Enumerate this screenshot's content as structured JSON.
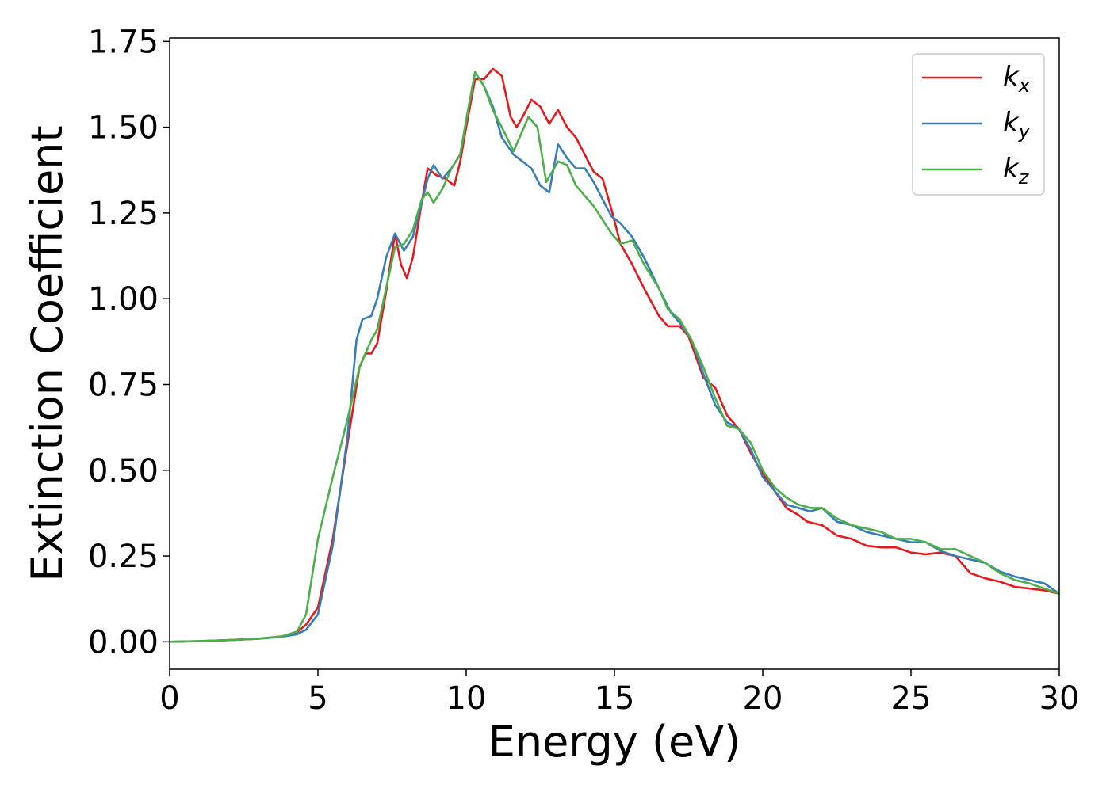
{
  "chart_data": {
    "type": "line",
    "title": "",
    "xlabel": "Energy (eV)",
    "ylabel": "Extinction Coefficient",
    "xlim": [
      0,
      30
    ],
    "ylim": [
      -0.08,
      1.76
    ],
    "xticks": [
      0,
      5,
      10,
      15,
      20,
      25,
      30
    ],
    "xtick_labels": [
      "0",
      "5",
      "10",
      "15",
      "20",
      "25",
      "30"
    ],
    "yticks": [
      0,
      0.25,
      0.5,
      0.75,
      1.0,
      1.25,
      1.5,
      1.75
    ],
    "ytick_labels": [
      "0.00",
      "0.25",
      "0.50",
      "0.75",
      "1.00",
      "1.25",
      "1.50",
      "1.75"
    ],
    "grid": false,
    "legend_position": "top-right",
    "series": [
      {
        "name": "k_x",
        "label_main": "k",
        "label_sub": "x",
        "color": "#e41a1c",
        "points": [
          [
            0,
            0
          ],
          [
            1,
            0.002
          ],
          [
            2,
            0.005
          ],
          [
            3,
            0.009
          ],
          [
            3.8,
            0.016
          ],
          [
            4.3,
            0.028
          ],
          [
            4.6,
            0.05
          ],
          [
            5,
            0.1
          ],
          [
            5.5,
            0.3
          ],
          [
            6,
            0.58
          ],
          [
            6.4,
            0.8
          ],
          [
            6.6,
            0.84
          ],
          [
            6.8,
            0.84
          ],
          [
            7,
            0.87
          ],
          [
            7.3,
            1.02
          ],
          [
            7.6,
            1.19
          ],
          [
            7.8,
            1.1
          ],
          [
            8,
            1.06
          ],
          [
            8.2,
            1.12
          ],
          [
            8.5,
            1.28
          ],
          [
            8.7,
            1.38
          ],
          [
            9,
            1.36
          ],
          [
            9.3,
            1.35
          ],
          [
            9.6,
            1.33
          ],
          [
            9.8,
            1.4
          ],
          [
            10,
            1.5
          ],
          [
            10.3,
            1.64
          ],
          [
            10.6,
            1.64
          ],
          [
            10.9,
            1.67
          ],
          [
            11.2,
            1.65
          ],
          [
            11.5,
            1.53
          ],
          [
            11.7,
            1.5
          ],
          [
            11.9,
            1.53
          ],
          [
            12.2,
            1.58
          ],
          [
            12.5,
            1.56
          ],
          [
            12.8,
            1.51
          ],
          [
            13.1,
            1.55
          ],
          [
            13.4,
            1.5
          ],
          [
            13.7,
            1.47
          ],
          [
            14,
            1.42
          ],
          [
            14.3,
            1.37
          ],
          [
            14.6,
            1.35
          ],
          [
            14.9,
            1.26
          ],
          [
            15.2,
            1.16
          ],
          [
            15.6,
            1.1
          ],
          [
            16,
            1.03
          ],
          [
            16.5,
            0.95
          ],
          [
            16.8,
            0.92
          ],
          [
            17.2,
            0.92
          ],
          [
            17.5,
            0.89
          ],
          [
            18,
            0.77
          ],
          [
            18.4,
            0.74
          ],
          [
            18.8,
            0.66
          ],
          [
            19.2,
            0.62
          ],
          [
            19.6,
            0.55
          ],
          [
            20,
            0.49
          ],
          [
            20.4,
            0.44
          ],
          [
            20.8,
            0.39
          ],
          [
            21.2,
            0.37
          ],
          [
            21.5,
            0.35
          ],
          [
            22,
            0.34
          ],
          [
            22.5,
            0.31
          ],
          [
            23,
            0.3
          ],
          [
            23.5,
            0.28
          ],
          [
            24,
            0.275
          ],
          [
            24.5,
            0.275
          ],
          [
            25,
            0.26
          ],
          [
            25.5,
            0.255
          ],
          [
            26,
            0.26
          ],
          [
            26.5,
            0.25
          ],
          [
            27,
            0.2
          ],
          [
            27.5,
            0.185
          ],
          [
            28,
            0.175
          ],
          [
            28.5,
            0.16
          ],
          [
            29,
            0.155
          ],
          [
            29.5,
            0.15
          ],
          [
            30,
            0.14
          ]
        ]
      },
      {
        "name": "k_y",
        "label_main": "k",
        "label_sub": "y",
        "color": "#377eb8",
        "points": [
          [
            0,
            0
          ],
          [
            1,
            0.002
          ],
          [
            2,
            0.005
          ],
          [
            3,
            0.009
          ],
          [
            3.8,
            0.015
          ],
          [
            4.3,
            0.022
          ],
          [
            4.6,
            0.035
          ],
          [
            5,
            0.08
          ],
          [
            5.5,
            0.28
          ],
          [
            6,
            0.6
          ],
          [
            6.3,
            0.88
          ],
          [
            6.5,
            0.94
          ],
          [
            6.8,
            0.95
          ],
          [
            7,
            1.0
          ],
          [
            7.3,
            1.12
          ],
          [
            7.6,
            1.19
          ],
          [
            7.9,
            1.14
          ],
          [
            8.2,
            1.18
          ],
          [
            8.5,
            1.28
          ],
          [
            8.7,
            1.35
          ],
          [
            8.9,
            1.39
          ],
          [
            9.2,
            1.35
          ],
          [
            9.5,
            1.38
          ],
          [
            9.8,
            1.42
          ],
          [
            10,
            1.52
          ],
          [
            10.3,
            1.66
          ],
          [
            10.6,
            1.62
          ],
          [
            10.9,
            1.56
          ],
          [
            11.2,
            1.47
          ],
          [
            11.6,
            1.42
          ],
          [
            11.9,
            1.4
          ],
          [
            12.2,
            1.38
          ],
          [
            12.5,
            1.33
          ],
          [
            12.8,
            1.31
          ],
          [
            13.1,
            1.45
          ],
          [
            13.4,
            1.41
          ],
          [
            13.7,
            1.38
          ],
          [
            14,
            1.38
          ],
          [
            14.3,
            1.34
          ],
          [
            14.6,
            1.29
          ],
          [
            14.9,
            1.24
          ],
          [
            15.2,
            1.22
          ],
          [
            15.6,
            1.18
          ],
          [
            16,
            1.12
          ],
          [
            16.5,
            1.03
          ],
          [
            16.9,
            0.96
          ],
          [
            17.2,
            0.93
          ],
          [
            17.6,
            0.88
          ],
          [
            18,
            0.78
          ],
          [
            18.4,
            0.69
          ],
          [
            18.8,
            0.64
          ],
          [
            19.2,
            0.62
          ],
          [
            19.6,
            0.56
          ],
          [
            20,
            0.48
          ],
          [
            20.4,
            0.44
          ],
          [
            20.8,
            0.4
          ],
          [
            21.2,
            0.39
          ],
          [
            21.6,
            0.38
          ],
          [
            22,
            0.39
          ],
          [
            22.5,
            0.35
          ],
          [
            23,
            0.34
          ],
          [
            23.5,
            0.32
          ],
          [
            24,
            0.31
          ],
          [
            24.5,
            0.3
          ],
          [
            25,
            0.29
          ],
          [
            25.5,
            0.29
          ],
          [
            26,
            0.265
          ],
          [
            26.5,
            0.25
          ],
          [
            27,
            0.24
          ],
          [
            27.5,
            0.23
          ],
          [
            28,
            0.205
          ],
          [
            28.5,
            0.19
          ],
          [
            29,
            0.18
          ],
          [
            29.5,
            0.17
          ],
          [
            30,
            0.14
          ]
        ]
      },
      {
        "name": "k_z",
        "label_main": "k",
        "label_sub": "z",
        "color": "#4daf4a",
        "points": [
          [
            0,
            0
          ],
          [
            1,
            0.002
          ],
          [
            2,
            0.005
          ],
          [
            3,
            0.009
          ],
          [
            3.8,
            0.016
          ],
          [
            4.3,
            0.03
          ],
          [
            4.6,
            0.08
          ],
          [
            5,
            0.3
          ],
          [
            5.5,
            0.48
          ],
          [
            6,
            0.65
          ],
          [
            6.4,
            0.8
          ],
          [
            6.8,
            0.88
          ],
          [
            7,
            0.91
          ],
          [
            7.3,
            1.03
          ],
          [
            7.6,
            1.15
          ],
          [
            7.9,
            1.16
          ],
          [
            8.2,
            1.2
          ],
          [
            8.5,
            1.29
          ],
          [
            8.7,
            1.31
          ],
          [
            8.9,
            1.28
          ],
          [
            9.2,
            1.32
          ],
          [
            9.5,
            1.38
          ],
          [
            9.8,
            1.42
          ],
          [
            10,
            1.52
          ],
          [
            10.3,
            1.66
          ],
          [
            10.6,
            1.62
          ],
          [
            10.9,
            1.55
          ],
          [
            11.2,
            1.5
          ],
          [
            11.6,
            1.43
          ],
          [
            11.8,
            1.47
          ],
          [
            12.1,
            1.53
          ],
          [
            12.4,
            1.5
          ],
          [
            12.7,
            1.34
          ],
          [
            13.1,
            1.4
          ],
          [
            13.4,
            1.39
          ],
          [
            13.7,
            1.33
          ],
          [
            14,
            1.3
          ],
          [
            14.3,
            1.27
          ],
          [
            14.6,
            1.23
          ],
          [
            14.9,
            1.19
          ],
          [
            15.2,
            1.16
          ],
          [
            15.6,
            1.17
          ],
          [
            16,
            1.1
          ],
          [
            16.5,
            1.03
          ],
          [
            16.8,
            0.97
          ],
          [
            17.2,
            0.94
          ],
          [
            17.6,
            0.88
          ],
          [
            18,
            0.8
          ],
          [
            18.4,
            0.71
          ],
          [
            18.8,
            0.63
          ],
          [
            19.2,
            0.62
          ],
          [
            19.6,
            0.58
          ],
          [
            20,
            0.5
          ],
          [
            20.4,
            0.45
          ],
          [
            20.8,
            0.42
          ],
          [
            21.2,
            0.4
          ],
          [
            21.6,
            0.39
          ],
          [
            22,
            0.39
          ],
          [
            22.5,
            0.36
          ],
          [
            23,
            0.34
          ],
          [
            23.5,
            0.33
          ],
          [
            24,
            0.32
          ],
          [
            24.5,
            0.3
          ],
          [
            25,
            0.3
          ],
          [
            25.5,
            0.29
          ],
          [
            26,
            0.27
          ],
          [
            26.5,
            0.27
          ],
          [
            27,
            0.25
          ],
          [
            27.5,
            0.23
          ],
          [
            28,
            0.2
          ],
          [
            28.5,
            0.18
          ],
          [
            29,
            0.17
          ],
          [
            29.5,
            0.155
          ],
          [
            30,
            0.14
          ]
        ]
      }
    ]
  }
}
